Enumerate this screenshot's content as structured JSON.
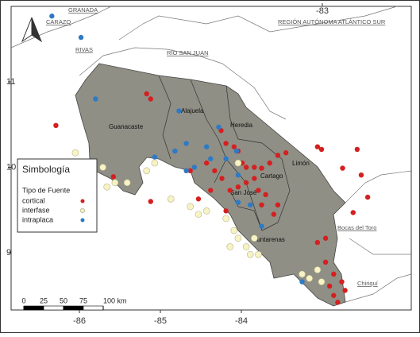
{
  "map": {
    "top_ticks": [
      -83
    ],
    "bottom_ticks": [
      -86,
      -85,
      -84
    ],
    "left_ticks": [
      11,
      10,
      9
    ],
    "places": [
      "CARAZO",
      "GRANADA",
      "RIVAS",
      "RÍO SAN JUAN",
      "REGIÓN AUTÓNOMA ATLÁNTICO SUR",
      "Bocas del Toro",
      "Chiriquí"
    ],
    "provinces": [
      "Guanacaste",
      "Alajuela",
      "Heredia",
      "Limón",
      "Cartago",
      "San José",
      "Puntarenas"
    ],
    "legend_title": "Simbología",
    "legend_subtitle": "Tipo de Fuente",
    "series": [
      {
        "name": "cortical",
        "color": "#d42020",
        "points": [
          {
            "lon": -86.29,
            "lat": 10.49
          },
          {
            "lon": -85.17,
            "lat": 10.86
          },
          {
            "lon": -85.12,
            "lat": 10.8
          },
          {
            "lon": -85.58,
            "lat": 9.89
          },
          {
            "lon": -85.12,
            "lat": 9.6
          },
          {
            "lon": -84.25,
            "lat": 10.43
          },
          {
            "lon": -84.19,
            "lat": 10.28
          },
          {
            "lon": -84.09,
            "lat": 10.24
          },
          {
            "lon": -84.04,
            "lat": 10.19
          },
          {
            "lon": -83.99,
            "lat": 10.05
          },
          {
            "lon": -83.94,
            "lat": 10.0
          },
          {
            "lon": -83.84,
            "lat": 10.0
          },
          {
            "lon": -83.75,
            "lat": 9.99
          },
          {
            "lon": -83.65,
            "lat": 10.05
          },
          {
            "lon": -83.55,
            "lat": 10.14
          },
          {
            "lon": -83.45,
            "lat": 10.17
          },
          {
            "lon": -83.84,
            "lat": 9.87
          },
          {
            "lon": -83.94,
            "lat": 9.82
          },
          {
            "lon": -84.04,
            "lat": 9.77
          },
          {
            "lon": -84.14,
            "lat": 9.73
          },
          {
            "lon": -84.24,
            "lat": 9.87
          },
          {
            "lon": -84.33,
            "lat": 9.96
          },
          {
            "lon": -84.43,
            "lat": 10.05
          },
          {
            "lon": -84.38,
            "lat": 9.73
          },
          {
            "lon": -84.53,
            "lat": 9.63
          },
          {
            "lon": -84.63,
            "lat": 9.96
          },
          {
            "lon": -83.79,
            "lat": 9.73
          },
          {
            "lon": -83.7,
            "lat": 9.68
          },
          {
            "lon": -83.6,
            "lat": 9.45
          },
          {
            "lon": -83.06,
            "lat": 10.24
          },
          {
            "lon": -83.01,
            "lat": 10.21
          },
          {
            "lon": -82.57,
            "lat": 10.21
          },
          {
            "lon": -82.75,
            "lat": 9.99
          },
          {
            "lon": -82.52,
            "lat": 9.91
          },
          {
            "lon": -82.62,
            "lat": 9.47
          },
          {
            "lon": -82.44,
            "lat": 9.65
          },
          {
            "lon": -83.06,
            "lat": 9.12
          },
          {
            "lon": -82.96,
            "lat": 8.89
          },
          {
            "lon": -82.86,
            "lat": 8.75
          },
          {
            "lon": -82.76,
            "lat": 8.66
          },
          {
            "lon": -82.72,
            "lat": 8.56
          },
          {
            "lon": -82.86,
            "lat": 8.5
          },
          {
            "lon": -82.81,
            "lat": 8.42
          },
          {
            "lon": -82.91,
            "lat": 8.61
          },
          {
            "lon": -82.96,
            "lat": 9.17
          },
          {
            "lon": -83.55,
            "lat": 9.56
          },
          {
            "lon": -83.75,
            "lat": 9.56
          },
          {
            "lon": -84.19,
            "lat": 9.49
          }
        ]
      },
      {
        "name": "interfase",
        "color": "#f7f3c4",
        "points": [
          {
            "lon": -86.05,
            "lat": 10.17
          },
          {
            "lon": -85.71,
            "lat": 10.0
          },
          {
            "lon": -85.66,
            "lat": 9.77
          },
          {
            "lon": -85.56,
            "lat": 9.82
          },
          {
            "lon": -85.41,
            "lat": 9.82
          },
          {
            "lon": -84.87,
            "lat": 9.63
          },
          {
            "lon": -84.63,
            "lat": 9.54
          },
          {
            "lon": -84.53,
            "lat": 9.45
          },
          {
            "lon": -84.43,
            "lat": 9.49
          },
          {
            "lon": -84.19,
            "lat": 9.4
          },
          {
            "lon": -84.09,
            "lat": 9.26
          },
          {
            "lon": -84.04,
            "lat": 9.17
          },
          {
            "lon": -83.94,
            "lat": 9.07
          },
          {
            "lon": -83.84,
            "lat": 9.17
          },
          {
            "lon": -84.14,
            "lat": 9.07
          },
          {
            "lon": -83.89,
            "lat": 8.98
          },
          {
            "lon": -83.79,
            "lat": 8.98
          },
          {
            "lon": -83.25,
            "lat": 8.75
          },
          {
            "lon": -83.16,
            "lat": 8.7
          },
          {
            "lon": -83.06,
            "lat": 8.8
          },
          {
            "lon": -83.01,
            "lat": 8.66
          },
          {
            "lon": -84.04,
            "lat": 10.05
          },
          {
            "lon": -85.07,
            "lat": 10.05
          },
          {
            "lon": -85.17,
            "lat": 9.96
          }
        ]
      },
      {
        "name": "intraplaca",
        "color": "#2e7ac4",
        "points": [
          {
            "lon": -86.34,
            "lat": 11.77
          },
          {
            "lon": -85.98,
            "lat": 11.52
          },
          {
            "lon": -85.8,
            "lat": 10.8
          },
          {
            "lon": -84.77,
            "lat": 10.66
          },
          {
            "lon": -84.28,
            "lat": 10.47
          },
          {
            "lon": -84.68,
            "lat": 10.28
          },
          {
            "lon": -84.82,
            "lat": 10.19
          },
          {
            "lon": -84.43,
            "lat": 10.24
          },
          {
            "lon": -84.38,
            "lat": 10.1
          },
          {
            "lon": -84.58,
            "lat": 10.0
          },
          {
            "lon": -84.68,
            "lat": 9.96
          },
          {
            "lon": -84.04,
            "lat": 9.91
          },
          {
            "lon": -84.04,
            "lat": 9.59
          },
          {
            "lon": -83.89,
            "lat": 9.56
          },
          {
            "lon": -83.75,
            "lat": 9.31
          },
          {
            "lon": -83.25,
            "lat": 8.66
          },
          {
            "lon": -85.07,
            "lat": 10.12
          },
          {
            "lon": -84.06,
            "lat": 10.19
          },
          {
            "lon": -84.19,
            "lat": 10.1
          }
        ]
      }
    ],
    "scale_bar": [
      0,
      25,
      50,
      75,
      {
        "value": 100,
        "label": "100 km"
      }
    ]
  }
}
